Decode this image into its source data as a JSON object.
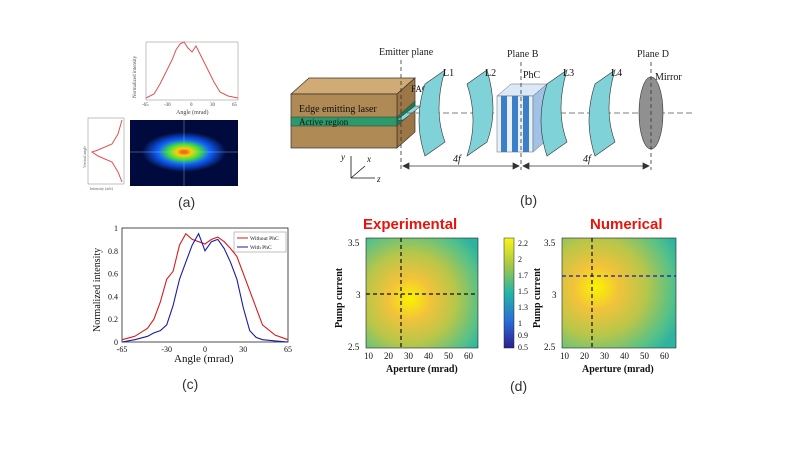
{
  "captions": {
    "a": "(a)",
    "b": "(b)",
    "c": "(c)",
    "d": "(d)"
  },
  "panel_a": {
    "top_ylabel": "Normalized intensity",
    "top_xlabel": "Angle (mrad)",
    "top_xticks": [
      "-65",
      "-30",
      "0",
      "30",
      "65"
    ],
    "left_ylabel": "Vertical angle",
    "left_xlabel": "Intensity (arb)",
    "colors": {
      "line": "#e05050",
      "beam_bg": "#000a3c"
    }
  },
  "panel_b": {
    "laser_label": "Edge emitting laser",
    "active_label": "Active region",
    "fac_label": "FAC",
    "emitter_plane": "Emitter plane",
    "plane_b": "Plane B",
    "plane_d": "Plane D",
    "l1": "L1",
    "l2": "L2",
    "phc": "PhC",
    "l3": "L3",
    "l4": "L4",
    "mirror": "Mirror",
    "dist_left": "4f",
    "dist_right": "4f",
    "axis_y": "y",
    "axis_x": "x",
    "axis_z": "z",
    "colors": {
      "laser": "#b08a55",
      "active": "#2a9a6a",
      "lens": "#7fd3d8",
      "phc": "#3a7fc8",
      "mirror": "#909090"
    }
  },
  "chart_data": {
    "type": "line",
    "xlabel": "Angle (mrad)",
    "ylabel": "Normalized intensity",
    "xlim": [
      -65,
      65
    ],
    "ylim": [
      0,
      1
    ],
    "xticks": [
      "-65",
      "-30",
      "0",
      "30",
      "65"
    ],
    "yticks": [
      "0",
      "0.2",
      "0.4",
      "0.6",
      "0.8",
      "1"
    ],
    "legend_position": "top-right",
    "x": [
      -65,
      -55,
      -45,
      -40,
      -35,
      -30,
      -25,
      -20,
      -15,
      -10,
      -5,
      0,
      5,
      10,
      15,
      20,
      25,
      30,
      35,
      40,
      45,
      55,
      65
    ],
    "series": [
      {
        "name": "Without PhC",
        "color": "#d81b1b",
        "values": [
          0.02,
          0.05,
          0.12,
          0.2,
          0.35,
          0.55,
          0.62,
          0.85,
          0.95,
          0.9,
          0.88,
          0.86,
          0.9,
          0.92,
          0.88,
          0.82,
          0.75,
          0.6,
          0.45,
          0.3,
          0.15,
          0.06,
          0.02
        ]
      },
      {
        "name": "With PhC",
        "color": "#1a1aa8",
        "values": [
          0.0,
          0.02,
          0.05,
          0.08,
          0.1,
          0.15,
          0.32,
          0.55,
          0.7,
          0.85,
          0.95,
          0.8,
          0.88,
          0.9,
          0.82,
          0.7,
          0.55,
          0.3,
          0.1,
          0.04,
          0.02,
          0.01,
          0.0
        ]
      }
    ]
  },
  "panel_d": {
    "left_title": "Experimental",
    "right_title": "Numerical",
    "xlabel": "Aperture (mrad)",
    "ylabel": "Pump current",
    "xticks": [
      "10",
      "20",
      "30",
      "40",
      "50",
      "60"
    ],
    "yticks": [
      "2.5",
      "3",
      "3.5"
    ],
    "colorbar_ticks": [
      "2.2",
      "2",
      "1.7",
      "1.5",
      "1.3",
      "1",
      "0.9",
      "0.5"
    ],
    "exp_peak": {
      "aperture": 28,
      "current": 3
    },
    "num_peak": {
      "aperture": 23,
      "current": 3.2
    }
  }
}
